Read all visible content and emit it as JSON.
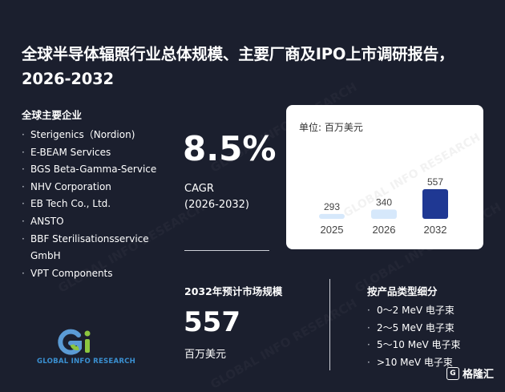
{
  "title": "全球半导体辐照行业总体规模、主要厂商及IPO上市调研报告，2026-2032",
  "companies_heading": "全球主要企业",
  "companies": [
    "Sterigenics（Nordion)",
    "E-BEAM Services",
    "BGS Beta-Gamma-Service",
    "NHV Corporation",
    "EB Tech Co., Ltd.",
    "ANSTO",
    "BBF Sterilisationsservice GmbH",
    "VPT Components"
  ],
  "cagr": {
    "value": "8.5%",
    "label": "CAGR",
    "period": "(2026-2032)"
  },
  "market_size": {
    "heading": "2032年预计市场规模",
    "value": "557",
    "unit": "百万美元"
  },
  "types_heading": "按产品类型细分",
  "types": [
    "0～2 MeV 电子束",
    "2～5 MeV 电子束",
    "5～10 MeV 电子束",
    ">10 MeV 电子束"
  ],
  "logo": {
    "text": "GLOBAL INFO RESEARCH"
  },
  "footer_brand": "格隆汇",
  "chart_data": {
    "type": "bar",
    "unit_label": "单位: 百万美元",
    "categories": [
      "2025",
      "2026",
      "2032"
    ],
    "values": [
      293,
      340,
      557
    ],
    "data_labels": [
      "293",
      "340",
      "557"
    ],
    "colors": [
      "#d6e8fb",
      "#d6e8fb",
      "#1f3893"
    ],
    "title": "",
    "xlabel": "",
    "ylabel": "",
    "ylim": [
      0,
      557
    ],
    "grid": false,
    "legend": "none"
  }
}
